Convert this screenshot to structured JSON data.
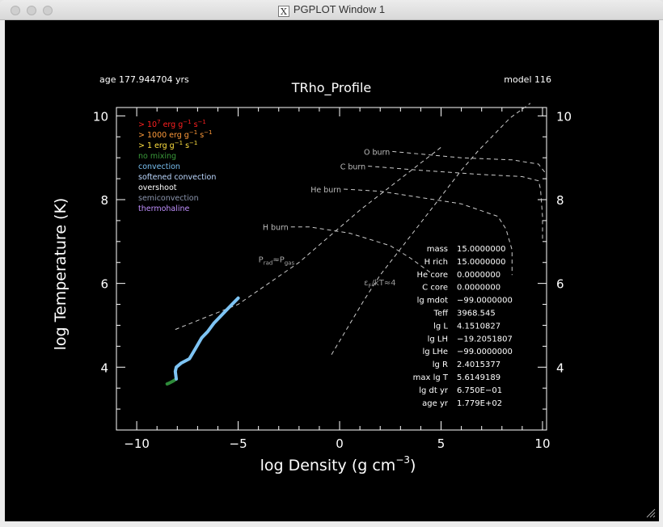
{
  "window": {
    "title": "PGPLOT Window 1"
  },
  "header": {
    "age": "age 177.944704 yrs",
    "plot_title": "TRho_Profile",
    "model": "model 116"
  },
  "chart_data": {
    "type": "line",
    "title": "TRho_Profile",
    "xlabel": "log Density (g cm",
    "xlabel_sup": "−3",
    "xlabel_close": ")",
    "ylabel": "log Temperature (K)",
    "xlim": [
      -11,
      10.2
    ],
    "ylim": [
      2.5,
      10.2
    ],
    "xticks": [
      -10,
      -5,
      0,
      5,
      10
    ],
    "xtick_labels": [
      "−10",
      "−5",
      "0",
      "5",
      "10"
    ],
    "yticks": [
      4,
      6,
      8,
      10
    ],
    "ytick_labels": [
      "4",
      "6",
      "8",
      "10"
    ],
    "legend": [
      {
        "base": "> 10",
        "sup": "7",
        "mid": " erg g",
        "sup2": "−1",
        "rest": " s",
        "sup3": "−1",
        "color": "#ff2020"
      },
      {
        "base": "> 1000 erg g",
        "sup": "−1",
        "mid": " s",
        "sup2": "−1",
        "rest": "",
        "sup3": "",
        "color": "#ff9a3a"
      },
      {
        "base": "> 1 erg g",
        "sup": "−1",
        "mid": " s",
        "sup2": "−1",
        "rest": "",
        "sup3": "",
        "color": "#ffe040"
      },
      {
        "base": "no mixing",
        "color": "#3a9a3a"
      },
      {
        "base": "convection",
        "color": "#78bff0"
      },
      {
        "base": "softened convection",
        "color": "#bcd8ff"
      },
      {
        "base": "overshoot",
        "color": "#ffffff"
      },
      {
        "base": "semiconvection",
        "color": "#8c96ae"
      },
      {
        "base": "thermohaline",
        "color": "#c090ff"
      }
    ],
    "profile_green": {
      "x": [
        -8.5,
        -8.4,
        -8.2,
        -8.05
      ],
      "y": [
        3.6,
        3.62,
        3.67,
        3.72
      ],
      "color": "#2e8b3a"
    },
    "profile_blue": {
      "x": [
        -8.05,
        -8.1,
        -8.05,
        -7.8,
        -7.4,
        -7.1,
        -6.8,
        -6.5,
        -6.2,
        -5.9,
        -5.6,
        -5.3,
        -5.0
      ],
      "y": [
        3.72,
        3.9,
        4.0,
        4.1,
        4.2,
        4.45,
        4.7,
        4.85,
        5.05,
        5.2,
        5.35,
        5.5,
        5.65
      ],
      "color": "#7ec4f4"
    },
    "prad_line": {
      "x": [
        -8.1,
        -5.0,
        -2.0,
        1.0,
        3.0,
        5.0
      ],
      "y": [
        4.9,
        5.5,
        6.5,
        7.75,
        8.5,
        9.25
      ],
      "color": "#cccccc"
    },
    "prad_label": {
      "main": "P",
      "sub1": "rad",
      "mid": "≈P",
      "sub2": "gas"
    },
    "eps_line": {
      "x": [
        -0.4,
        0.4,
        1.2,
        2.0,
        2.8,
        3.6,
        4.4,
        5.2,
        6.0,
        6.8,
        7.6,
        8.4,
        9.4
      ],
      "y": [
        4.3,
        4.95,
        5.6,
        6.2,
        6.7,
        7.2,
        7.7,
        8.2,
        8.7,
        9.15,
        9.55,
        9.95,
        10.3
      ],
      "color": "#cccccc"
    },
    "eps_label": {
      "main": "ε",
      "sub": "F",
      "rest": "/kT≈4"
    },
    "burn_lines": [
      {
        "label": "H burn",
        "x": [
          -2.4,
          -1.5,
          0.5,
          2.5,
          3.5,
          4.5
        ],
        "y": [
          7.35,
          7.35,
          7.2,
          6.9,
          6.6,
          6.25
        ],
        "color": "#cccccc"
      },
      {
        "label": "He burn",
        "x": [
          0.2,
          2.0,
          4.0,
          6.0,
          7.8,
          8.2,
          8.5,
          8.5
        ],
        "y": [
          8.25,
          8.2,
          8.05,
          7.9,
          7.6,
          7.3,
          6.8,
          6.2
        ],
        "color": "#cccccc"
      },
      {
        "label": "C burn",
        "x": [
          1.4,
          4.0,
          7.0,
          9.0,
          9.8,
          9.9,
          10.0,
          10.0
        ],
        "y": [
          8.8,
          8.7,
          8.6,
          8.55,
          8.45,
          8.25,
          7.6,
          7.0
        ],
        "color": "#cccccc"
      },
      {
        "label": "O burn",
        "x": [
          2.6,
          6.0,
          8.5,
          9.8,
          10.2
        ],
        "y": [
          9.15,
          9.0,
          8.95,
          8.85,
          8.6
        ],
        "color": "#cccccc"
      }
    ],
    "stats": [
      {
        "k": "mass",
        "v": "15.0000000"
      },
      {
        "k": "H rich",
        "v": "15.0000000"
      },
      {
        "k": "He core",
        "v": "0.0000000"
      },
      {
        "k": "C core",
        "v": "0.0000000"
      },
      {
        "k": "lg mdot",
        "v": "−99.0000000"
      },
      {
        "k": "Teff",
        "v": "3968.545"
      },
      {
        "k": "lg L",
        "v": "4.1510827"
      },
      {
        "k": "lg LH",
        "v": "−19.2051807"
      },
      {
        "k": "lg LHe",
        "v": "−99.0000000"
      },
      {
        "k": "lg R",
        "v": "2.4015377"
      },
      {
        "k": "max lg T",
        "v": "5.6149189"
      },
      {
        "k": "lg dt yr",
        "v": "6.750E−01"
      },
      {
        "k": "age yr",
        "v": "1.779E+02"
      }
    ]
  }
}
